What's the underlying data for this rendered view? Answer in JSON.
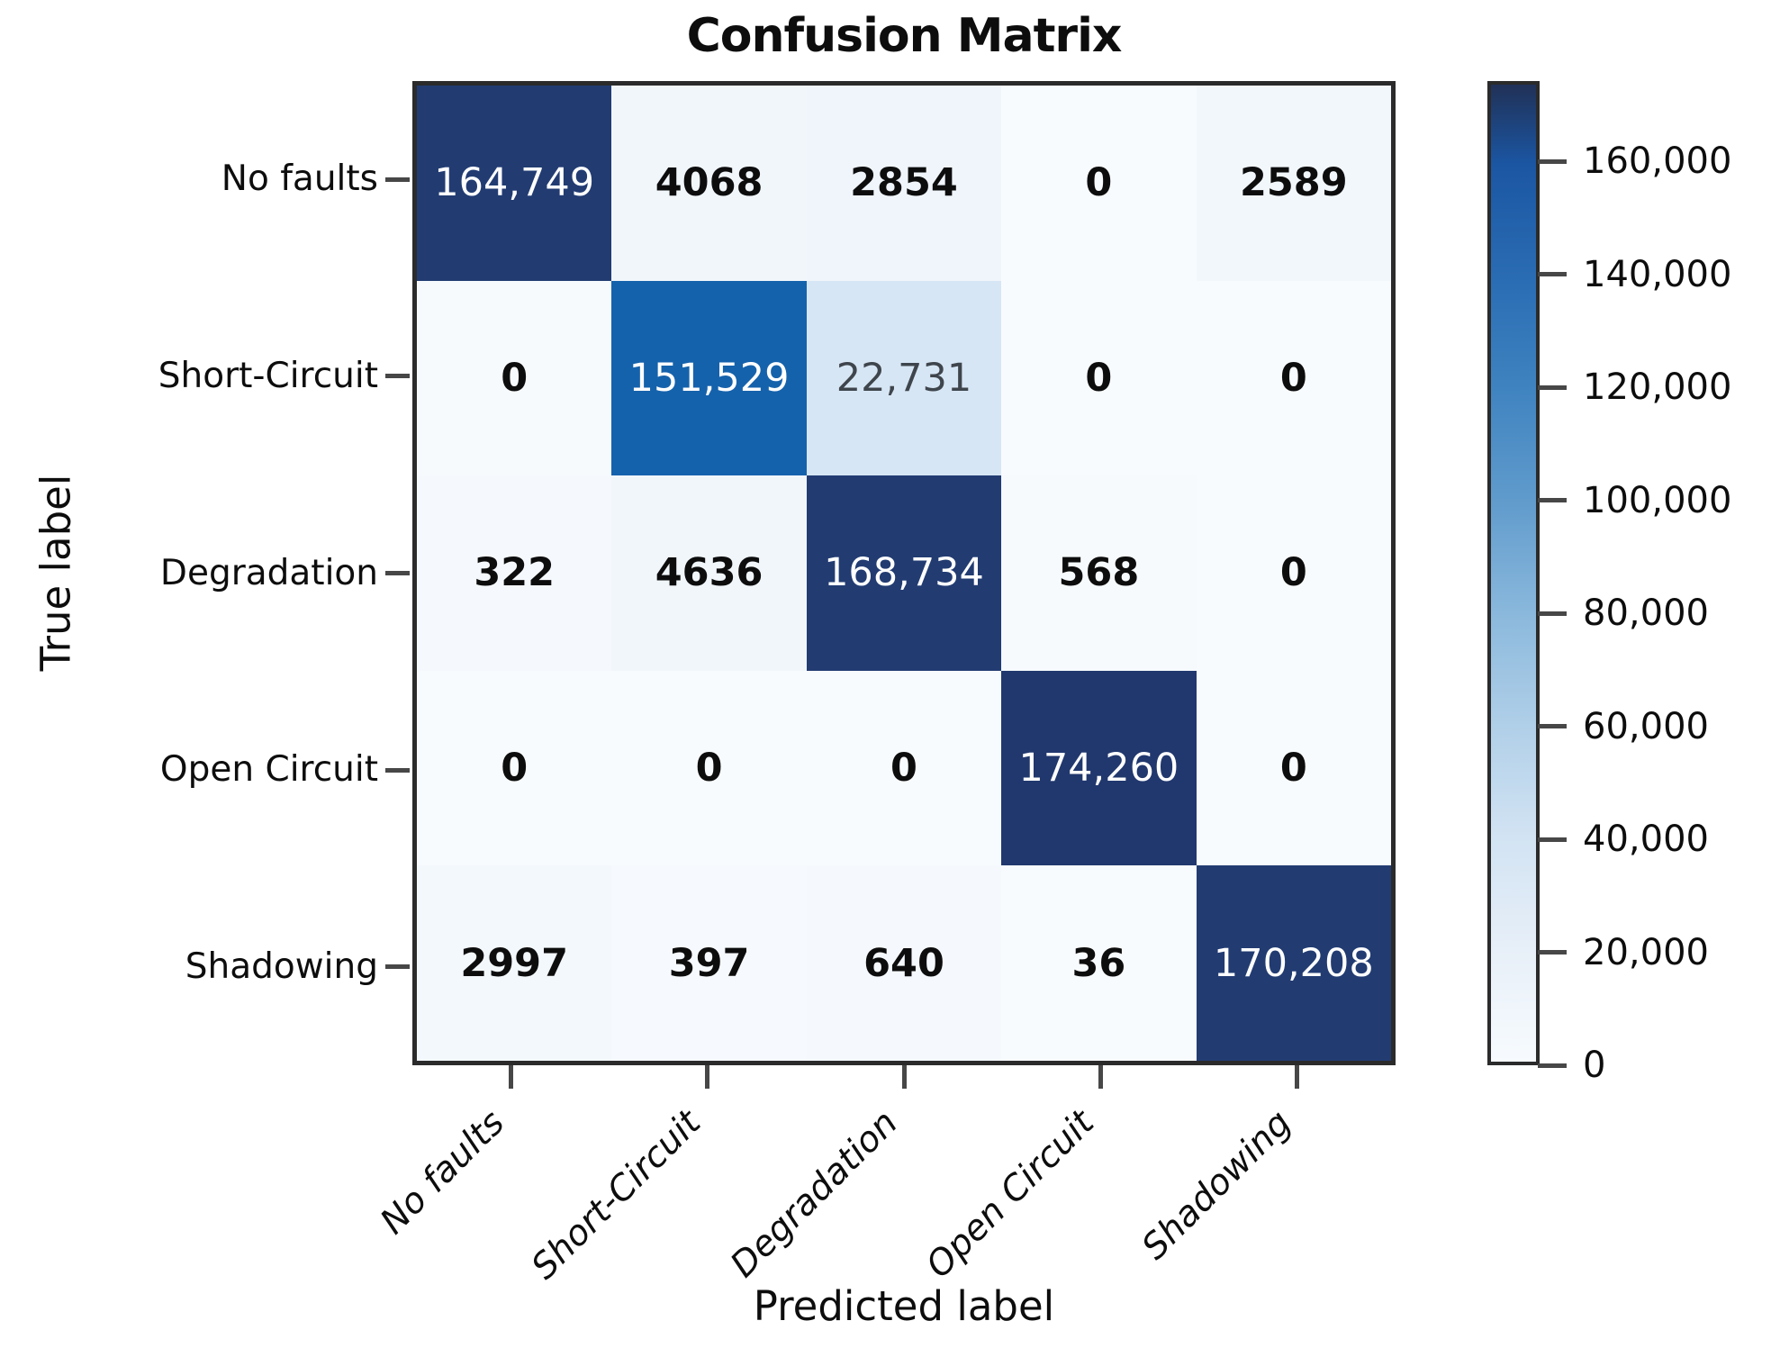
{
  "chart_data": {
    "type": "heatmap",
    "title": "Confusion Matrix",
    "xlabel": "Predicted label",
    "ylabel": "True label",
    "legend_position": "right-colorbar",
    "grid": false,
    "categories": [
      "No faults",
      "Short-Circuit",
      "Degradation",
      "Open Circuit",
      "Shadowing"
    ],
    "matrix": [
      [
        164749,
        4068,
        2854,
        0,
        2589
      ],
      [
        0,
        151529,
        22731,
        0,
        0
      ],
      [
        322,
        4636,
        168734,
        568,
        0
      ],
      [
        0,
        0,
        0,
        174260,
        0
      ],
      [
        2997,
        397,
        640,
        36,
        170208
      ]
    ],
    "cell_labels": [
      [
        "164,749",
        "4068",
        "2854",
        "0",
        "2589"
      ],
      [
        "0",
        "151,529",
        "22,731",
        "0",
        "0"
      ],
      [
        "322",
        "4636",
        "168,734",
        "568",
        "0"
      ],
      [
        "0",
        "0",
        "0",
        "174,260",
        "0"
      ],
      [
        "2997",
        "397",
        "640",
        "36",
        "170,208"
      ]
    ],
    "cell_colors": [
      [
        "#223c72",
        "#f1f6fb",
        "#f0f5fb",
        "#f8fbfe",
        "#f2f7fc"
      ],
      [
        "#f7fafd",
        "#1562ac",
        "#d7e6f5",
        "#f8fbfe",
        "#f8fbfe"
      ],
      [
        "#f5f9fd",
        "#f1f6fb",
        "#223c72",
        "#f6fafd",
        "#f8fbfe"
      ],
      [
        "#f8fbfe",
        "#f8fbfe",
        "#f8fbfe",
        "#21386e",
        "#f8fbfe"
      ],
      [
        "#f3f8fc",
        "#f6f9fd",
        "#f5f9fd",
        "#f8fbfe",
        "#223c72"
      ]
    ],
    "cell_text_colors": [
      [
        "#ffffff",
        "#0d0d0d",
        "#0d0d0d",
        "#0d0d0d",
        "#0d0d0d"
      ],
      [
        "#0d0d0d",
        "#ffffff",
        "#3f454c",
        "#0d0d0d",
        "#0d0d0d"
      ],
      [
        "#0d0d0d",
        "#0d0d0d",
        "#ffffff",
        "#0d0d0d",
        "#0d0d0d"
      ],
      [
        "#0d0d0d",
        "#0d0d0d",
        "#0d0d0d",
        "#ffffff",
        "#0d0d0d"
      ],
      [
        "#0d0d0d",
        "#0d0d0d",
        "#0d0d0d",
        "#0d0d0d",
        "#ffffff"
      ]
    ],
    "colorbar": {
      "vmin": 0,
      "vmax": 174260,
      "tick_values": [
        160000,
        140000,
        120000,
        100000,
        80000,
        60000,
        40000,
        20000,
        0
      ],
      "tick_labels": [
        "160,000",
        "140,000",
        "120,000",
        "100,000",
        "80,000",
        "60,000",
        "40,000",
        "20,000",
        "0"
      ],
      "gradient_top_to_bottom": [
        [
          "0%",
          "#203157"
        ],
        [
          "8.2%",
          "#1b56a3"
        ],
        [
          "19.7%",
          "#2a6cb3"
        ],
        [
          "31.1%",
          "#3f83c0"
        ],
        [
          "42.6%",
          "#609bcc"
        ],
        [
          "54.1%",
          "#8ab8dc"
        ],
        [
          "65.6%",
          "#b0cfe8"
        ],
        [
          "77%",
          "#d2e3f3"
        ],
        [
          "88.5%",
          "#e7eff8"
        ],
        [
          "100%",
          "#f7fbfe"
        ]
      ]
    },
    "spine_color": "#2b2b2b",
    "tick_color": "#474747"
  }
}
